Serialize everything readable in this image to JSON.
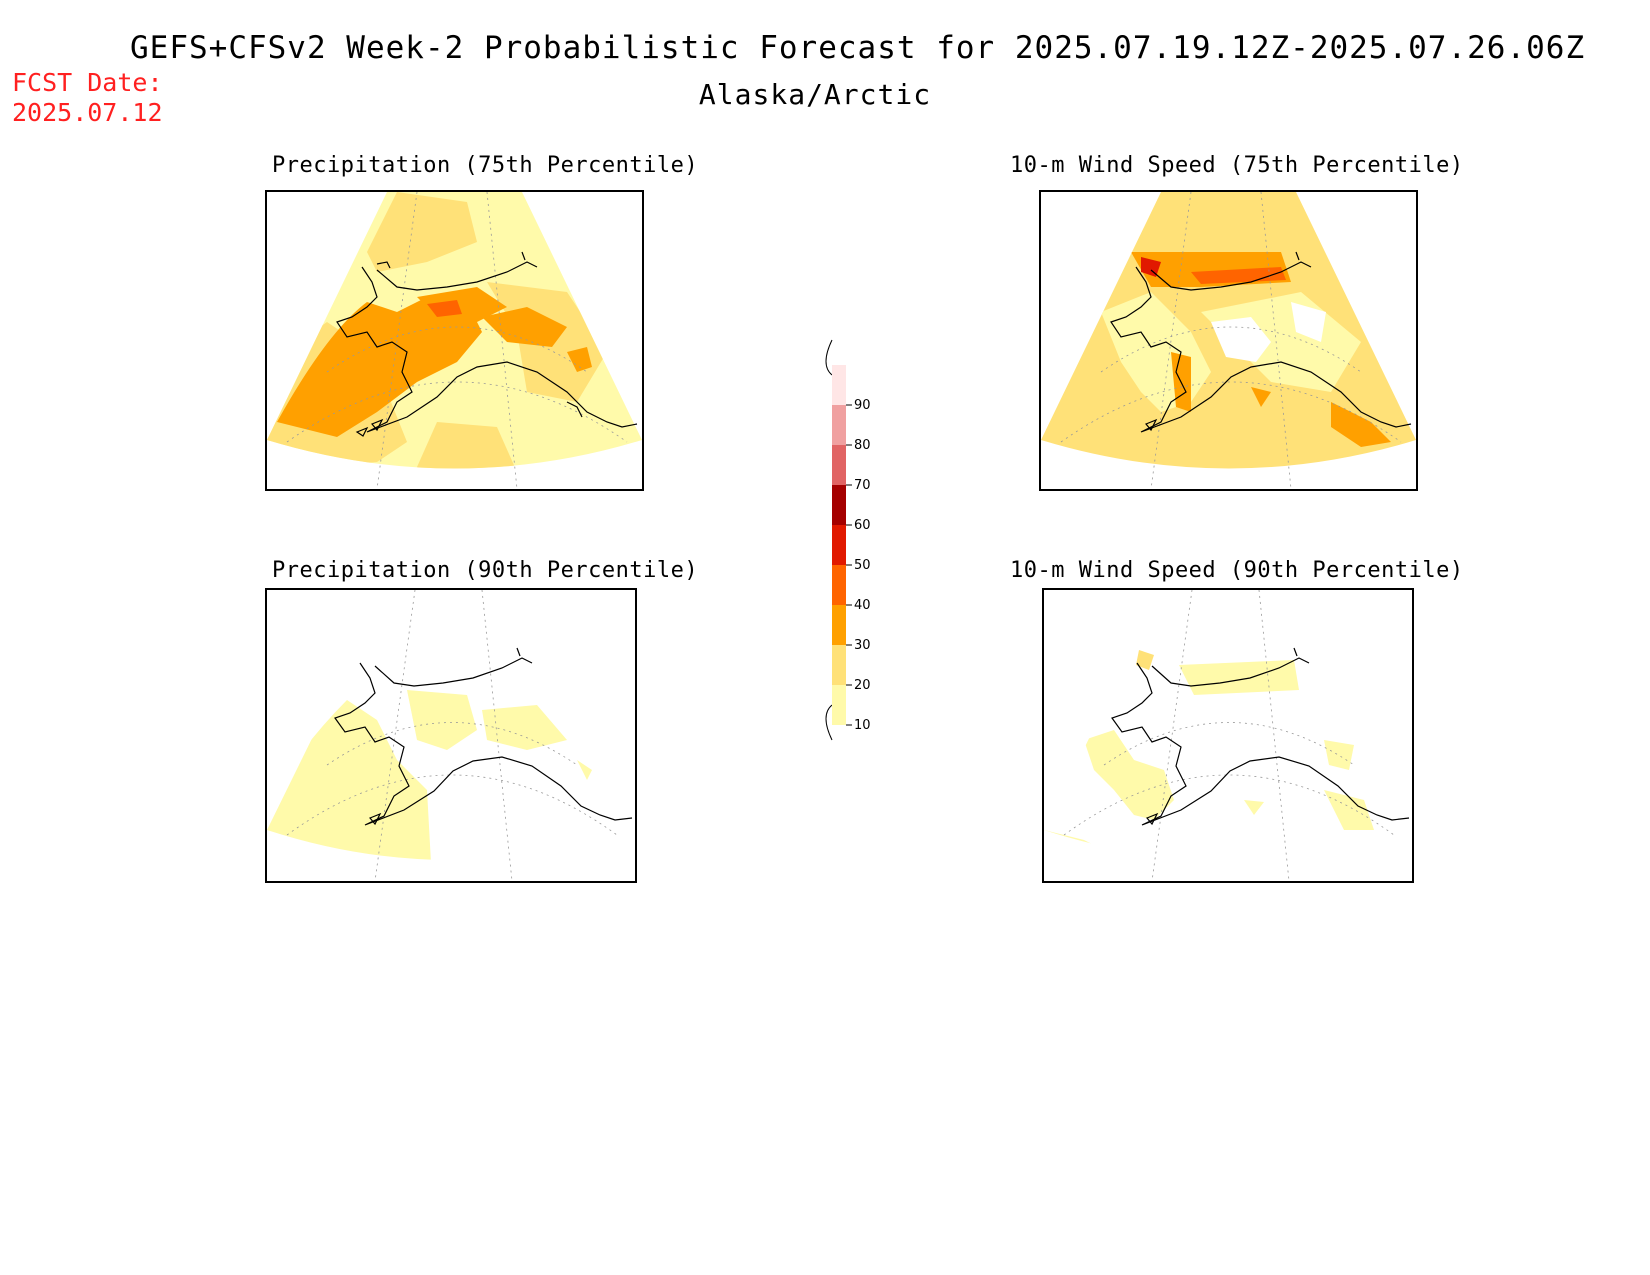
{
  "header": {
    "title": "GEFS+CFSv2 Week-2 Probabilistic Forecast for 2025.07.19.12Z-2025.07.26.06Z",
    "region": "Alaska/Arctic",
    "fcst_date_label": "FCST Date:",
    "fcst_date_value": "2025.07.12"
  },
  "panels": [
    {
      "id": "precip75",
      "title": "Precipitation (75th Percentile)"
    },
    {
      "id": "wind75",
      "title": "10-m Wind Speed (75th Percentile)"
    },
    {
      "id": "precip90",
      "title": "Precipitation (90th Percentile)"
    },
    {
      "id": "wind90",
      "title": "10-m Wind Speed (90th Percentile)"
    }
  ],
  "colorbar": {
    "levels": [
      "10",
      "20",
      "30",
      "40",
      "50",
      "60",
      "70",
      "80",
      "90"
    ],
    "colors": {
      "10-20": "#fffaaa",
      "20-30": "#ffe178",
      "30-40": "#ffa000",
      "40-50": "#ff6400",
      "50-60": "#e11900",
      "60-70": "#a50000",
      "70-80": "#e16464",
      "80-90": "#f0a0a0",
      "90+": "#ffe6e6"
    }
  }
}
